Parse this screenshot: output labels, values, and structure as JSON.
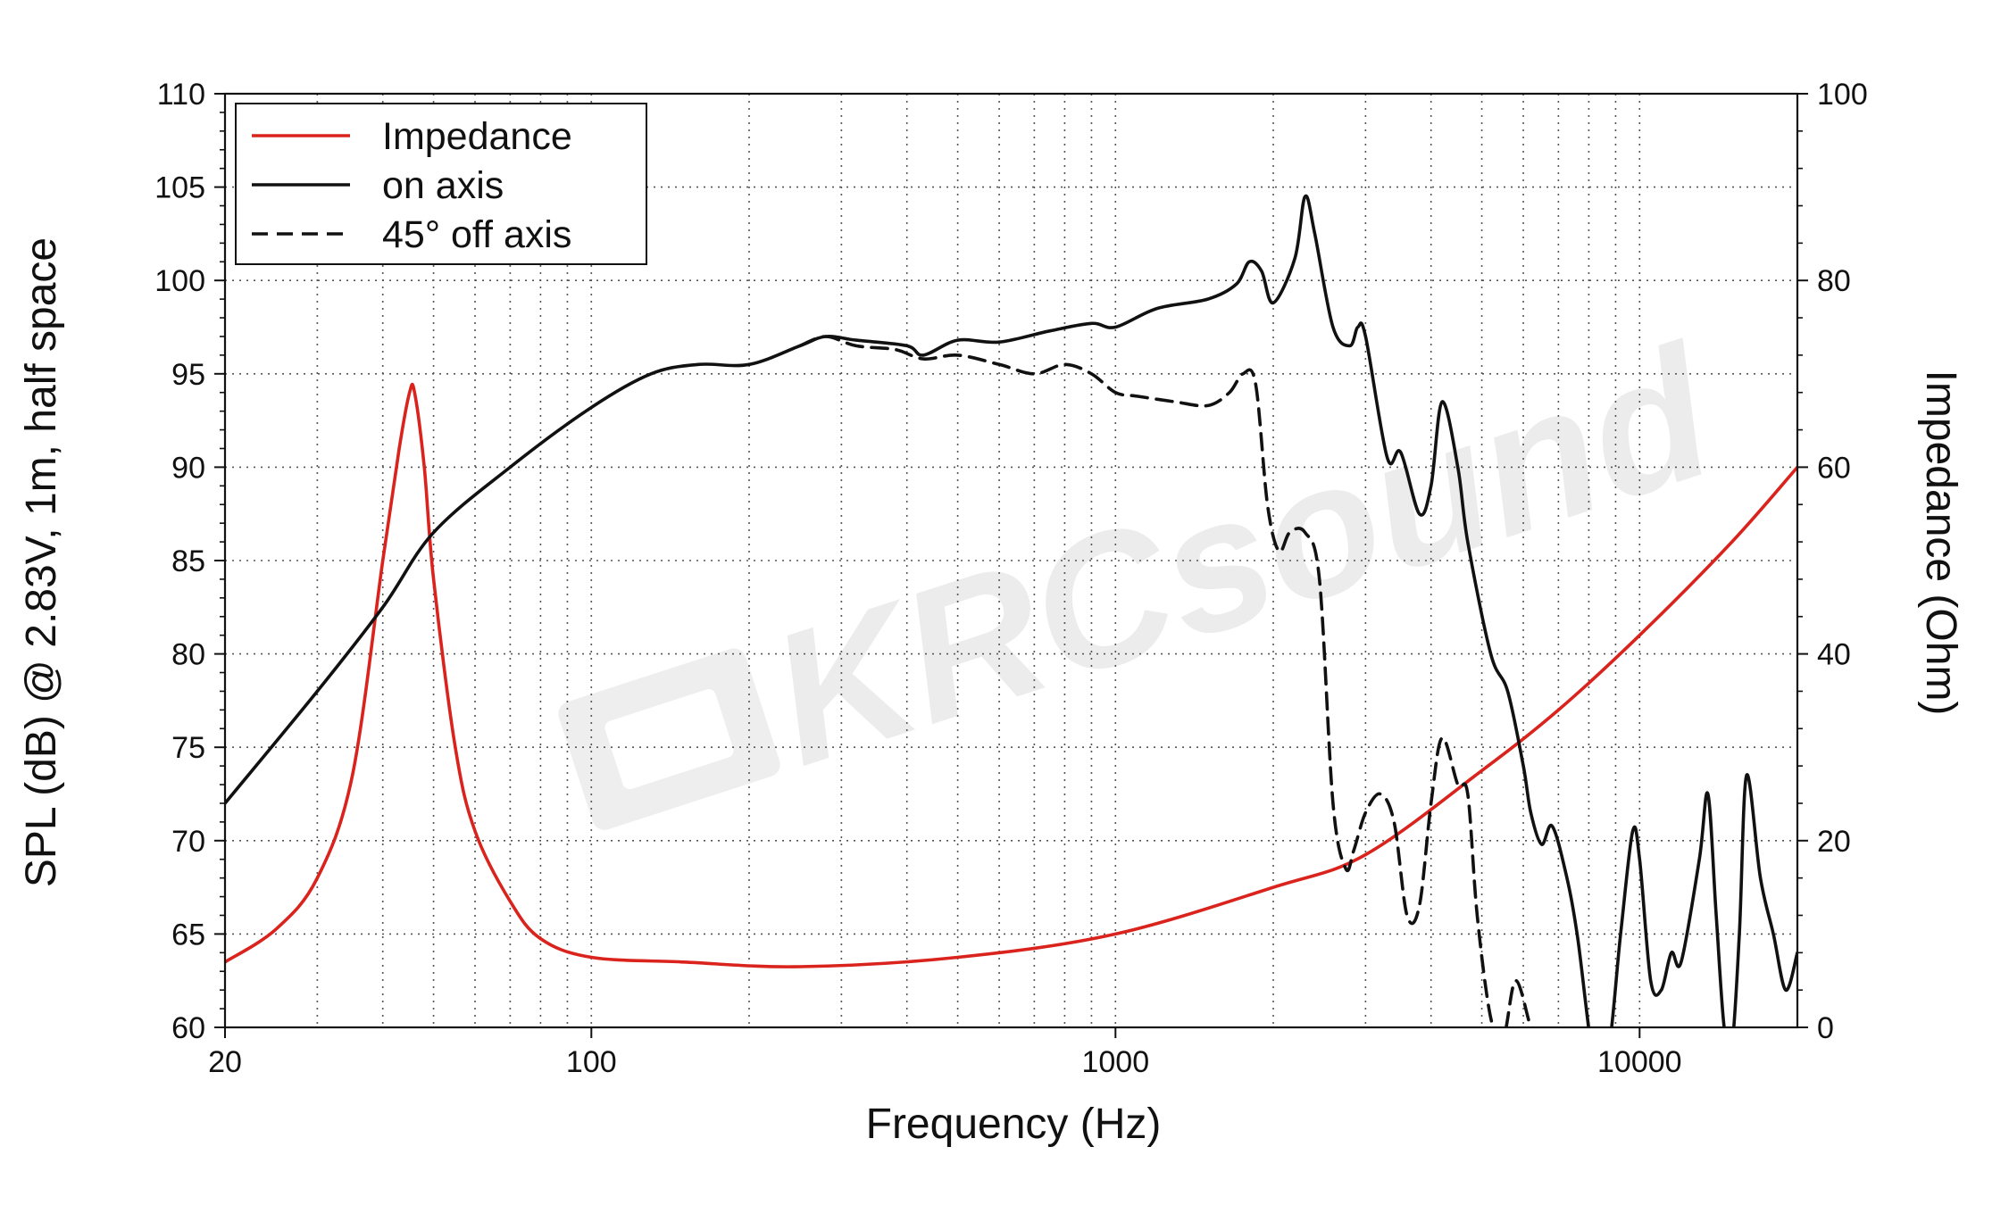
{
  "chart_data": {
    "type": "line",
    "xlabel": "Frequency (Hz)",
    "ylabel": "SPL (dB) @ 2.83V, 1m, half space",
    "y2label": "Impedance (Ohm)",
    "xscale": "log",
    "xlim": [
      20,
      20000
    ],
    "ylim": [
      60,
      110
    ],
    "y2lim": [
      0,
      100
    ],
    "xticks": [
      20,
      100,
      1000,
      10000
    ],
    "xtick_labels": [
      "20",
      "100",
      "1000",
      "10000"
    ],
    "yticks": [
      60,
      65,
      70,
      75,
      80,
      85,
      90,
      95,
      100,
      105,
      110
    ],
    "ytick_labels": [
      "60",
      "65",
      "70",
      "75",
      "80",
      "85",
      "90",
      "95",
      "100",
      "105",
      "110"
    ],
    "y2ticks": [
      0,
      20,
      40,
      60,
      80,
      100
    ],
    "y2tick_labels": [
      "0",
      "20",
      "40",
      "60",
      "80",
      "100"
    ],
    "grid": true,
    "legend_position": "top-left",
    "watermark": "KRCsound",
    "series": [
      {
        "name": "Impedance",
        "axis": "right",
        "color": "#d9231c",
        "dash": "solid",
        "x": [
          20,
          25,
          30,
          35,
          40,
          43,
          45,
          46,
          48,
          50,
          55,
          60,
          70,
          80,
          100,
          150,
          250,
          500,
          1000,
          2000,
          3000,
          5000,
          7000,
          10000,
          15000,
          20000
        ],
        "y": [
          7,
          10.5,
          16,
          27,
          50,
          62,
          68,
          68,
          60,
          48,
          30,
          21,
          13.5,
          9.5,
          7.5,
          7,
          6.5,
          7.5,
          10,
          15,
          18.5,
          27.5,
          34,
          42,
          52,
          60
        ]
      },
      {
        "name": "on axis",
        "axis": "left",
        "color": "#111111",
        "dash": "solid",
        "x": [
          20,
          30,
          40,
          50,
          70,
          100,
          130,
          160,
          200,
          250,
          280,
          320,
          400,
          430,
          500,
          600,
          750,
          900,
          1000,
          1200,
          1500,
          1700,
          1800,
          1900,
          2000,
          2200,
          2300,
          2400,
          2600,
          2800,
          2900,
          3000,
          3300,
          3500,
          3800,
          4000,
          4200,
          4500,
          4700,
          5200,
          5600,
          6000,
          6200,
          6500,
          6800,
          7200,
          7600,
          8200,
          8700,
          9200,
          9700,
          10000,
          10500,
          11000,
          11500,
          12000,
          13000,
          13500,
          14000,
          14500,
          15000,
          15500,
          16000,
          17000,
          18000,
          19000,
          20000
        ],
        "y": [
          72,
          78,
          82.5,
          86.5,
          90,
          93.2,
          95,
          95.5,
          95.5,
          96.5,
          97,
          96.8,
          96.5,
          96,
          96.8,
          96.7,
          97.3,
          97.7,
          97.5,
          98.5,
          99,
          99.8,
          101,
          100.5,
          98.8,
          101.2,
          104.5,
          102.5,
          97.5,
          96.5,
          97.5,
          97,
          90.5,
          90.8,
          87.5,
          89,
          93.5,
          90,
          86,
          80,
          78,
          74,
          71.5,
          69.8,
          70.8,
          68.5,
          65,
          58,
          58.5,
          65,
          70.5,
          69,
          62.5,
          62,
          64,
          63.5,
          69,
          72.5,
          66,
          60,
          59,
          65,
          73.5,
          68,
          65,
          62,
          64
        ]
      },
      {
        "name": "45° off axis",
        "axis": "left",
        "color": "#111111",
        "dash": "dashed",
        "x": [
          250,
          280,
          320,
          380,
          430,
          500,
          600,
          700,
          800,
          900,
          1000,
          1100,
          1300,
          1500,
          1650,
          1750,
          1850,
          1950,
          2050,
          2150,
          2300,
          2450,
          2600,
          2750,
          2850,
          3000,
          3200,
          3400,
          3600,
          3800,
          4000,
          4200,
          4500,
          4700,
          4900,
          5200,
          5500,
          5800,
          6200,
          6500,
          6800
        ],
        "y": [
          96.5,
          97,
          96.5,
          96.3,
          95.8,
          96,
          95.5,
          95,
          95.5,
          95,
          94,
          93.8,
          93.5,
          93.3,
          94,
          95,
          94.5,
          88,
          85.5,
          86.5,
          86.5,
          84,
          72,
          68.5,
          69.5,
          71.5,
          72.5,
          71,
          66,
          66.5,
          72,
          75.5,
          73,
          72.5,
          66,
          60.5,
          59.5,
          62.5,
          60,
          58.5,
          58
        ]
      }
    ]
  }
}
